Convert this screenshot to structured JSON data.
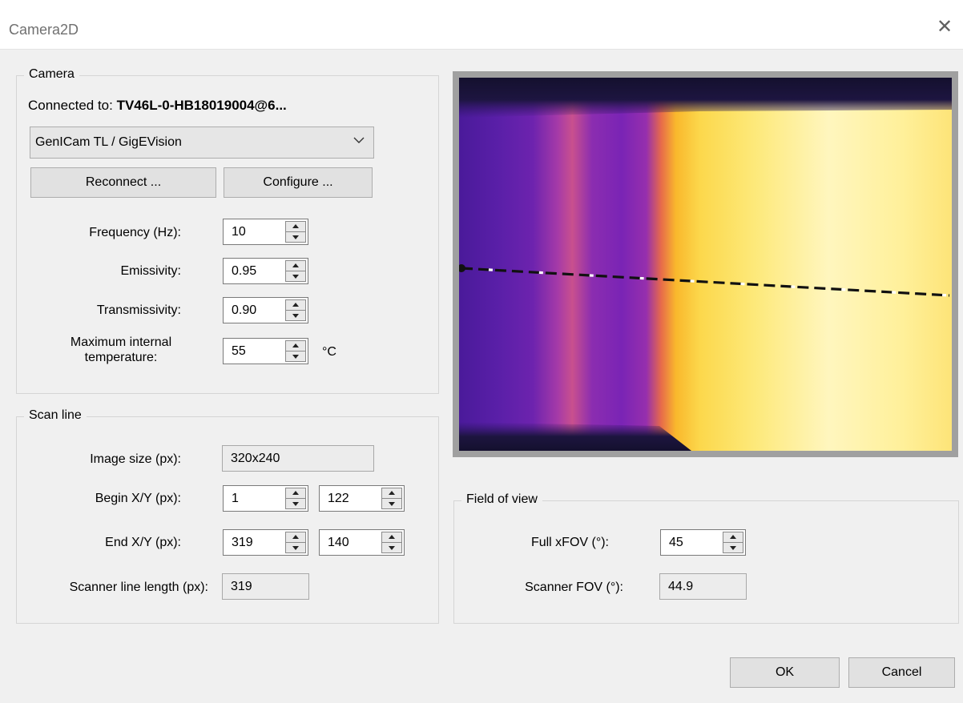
{
  "window": {
    "title": "Camera2D",
    "close_glyph": "✕"
  },
  "camera_group": {
    "label": "Camera",
    "connected_prefix": "Connected to: ",
    "connected_value": "TV46L-0-HB18019004@6...",
    "interface_select": "GenICam TL / GigEVision",
    "reconnect_label": "Reconnect ...",
    "configure_label": "Configure ...",
    "frequency_label": "Frequency (Hz):",
    "frequency_value": "10",
    "emissivity_label": "Emissivity:",
    "emissivity_value": "0.95",
    "transmissivity_label": "Transmissivity:",
    "transmissivity_value": "0.90",
    "max_temp_label_line1": "Maximum internal",
    "max_temp_label_line2": "temperature:",
    "max_temp_value": "55",
    "max_temp_unit": "°C"
  },
  "scan_line_group": {
    "label": "Scan line",
    "image_size_label": "Image size (px):",
    "image_size_value": "320x240",
    "begin_label": "Begin X/Y (px):",
    "begin_x": "1",
    "begin_y": "122",
    "end_label": "End X/Y (px):",
    "end_x": "319",
    "end_y": "140",
    "length_label": "Scanner line length (px):",
    "length_value": "319"
  },
  "fov_group": {
    "label": "Field of view",
    "full_xfov_label": "Full xFOV (°):",
    "full_xfov_value": "45",
    "scanner_fov_label": "Scanner FOV (°):",
    "scanner_fov_value": "44.9"
  },
  "footer": {
    "ok_label": "OK",
    "cancel_label": "Cancel"
  },
  "icons": {
    "combo": "chevron-down-icon",
    "spin": "spin-arrows-icon",
    "close": "close-icon"
  }
}
